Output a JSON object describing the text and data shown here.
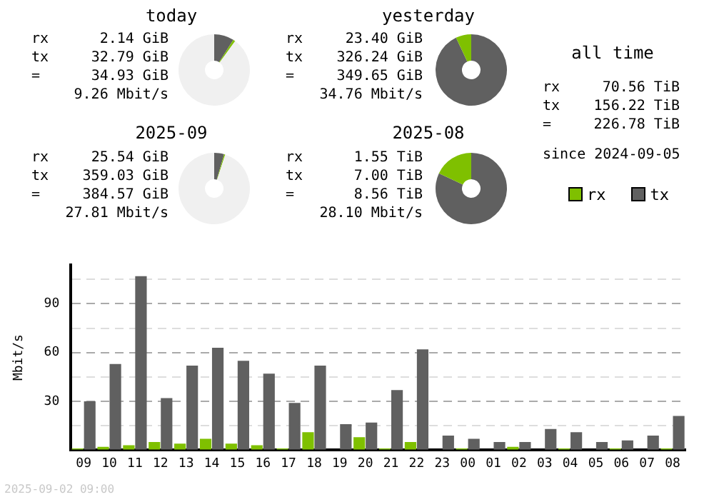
{
  "chart_data": [
    {
      "type": "donut",
      "title": "today",
      "categories": [
        null,
        null,
        null
      ],
      "values": [
        9,
        1,
        90
      ],
      "colors": [
        "#606060",
        "#7fc000",
        "#f0f0f0"
      ],
      "annotations": [
        "rx",
        "2.14 GiB",
        "tx",
        "32.79 GiB",
        "=",
        "34.93 GiB",
        "9.26 Mbit/s"
      ]
    },
    {
      "type": "donut",
      "title": "yesterday",
      "categories": [
        null,
        null
      ],
      "values": [
        93,
        7
      ],
      "colors": [
        "#606060",
        "#7fc000"
      ],
      "annotations": [
        "rx",
        "23.40 GiB",
        "tx",
        "326.24 GiB",
        "=",
        "349.65 GiB",
        "34.76 Mbit/s"
      ]
    },
    {
      "type": "other",
      "title": "all time",
      "annotations": [
        "rx",
        "70.56 TiB",
        "tx",
        "156.22 TiB",
        "=",
        "226.78 TiB",
        "since 2024-09-05"
      ]
    },
    {
      "type": "donut",
      "title": "2025-09",
      "categories": [
        null,
        null,
        null
      ],
      "values": [
        4.5,
        0.5,
        95
      ],
      "colors": [
        "#606060",
        "#7fc000",
        "#f0f0f0"
      ],
      "annotations": [
        "rx",
        "25.54 GiB",
        "tx",
        "359.03 GiB",
        "=",
        "384.57 GiB",
        "27.81 Mbit/s"
      ]
    },
    {
      "type": "donut",
      "title": "2025-08",
      "categories": [
        null,
        null
      ],
      "values": [
        82,
        18
      ],
      "colors": [
        "#606060",
        "#7fc000"
      ],
      "annotations": [
        "rx",
        "1.55 TiB",
        "tx",
        "7.00 TiB",
        "=",
        "8.56 TiB",
        "28.10 Mbit/s"
      ]
    },
    {
      "type": "bar",
      "ylabel": "Mbit/s",
      "categories": [
        "09",
        "10",
        "11",
        "12",
        "13",
        "14",
        "15",
        "16",
        "17",
        "18",
        "19",
        "20",
        "21",
        "22",
        "23",
        "00",
        "01",
        "02",
        "03",
        "04",
        "05",
        "06",
        "07",
        "08"
      ],
      "series": [
        {
          "name": "rx",
          "color": "#7fc000",
          "values": [
            1,
            2,
            3,
            5,
            4,
            7,
            4,
            3,
            1,
            11,
            0,
            8,
            1,
            5,
            0,
            1,
            0,
            2,
            0,
            1,
            0,
            1,
            0,
            1
          ]
        },
        {
          "name": "tx",
          "color": "#606060",
          "values": [
            30,
            53,
            107,
            32,
            52,
            63,
            55,
            47,
            29,
            52,
            16,
            17,
            37,
            62,
            9,
            7,
            5,
            5,
            13,
            11,
            5,
            6,
            9,
            21
          ]
        }
      ],
      "ylim": [
        0,
        114
      ],
      "yticks": [
        {
          "value": 0,
          "label": null
        },
        {
          "value": 15,
          "label": null
        },
        30,
        {
          "value": 45,
          "label": null
        },
        60,
        {
          "value": 75,
          "label": null
        },
        90,
        {
          "value": 105,
          "label": null
        }
      ],
      "grid": "y",
      "legend": "top right",
      "annotations": [
        "2025-09-02 09:00"
      ]
    }
  ]
}
